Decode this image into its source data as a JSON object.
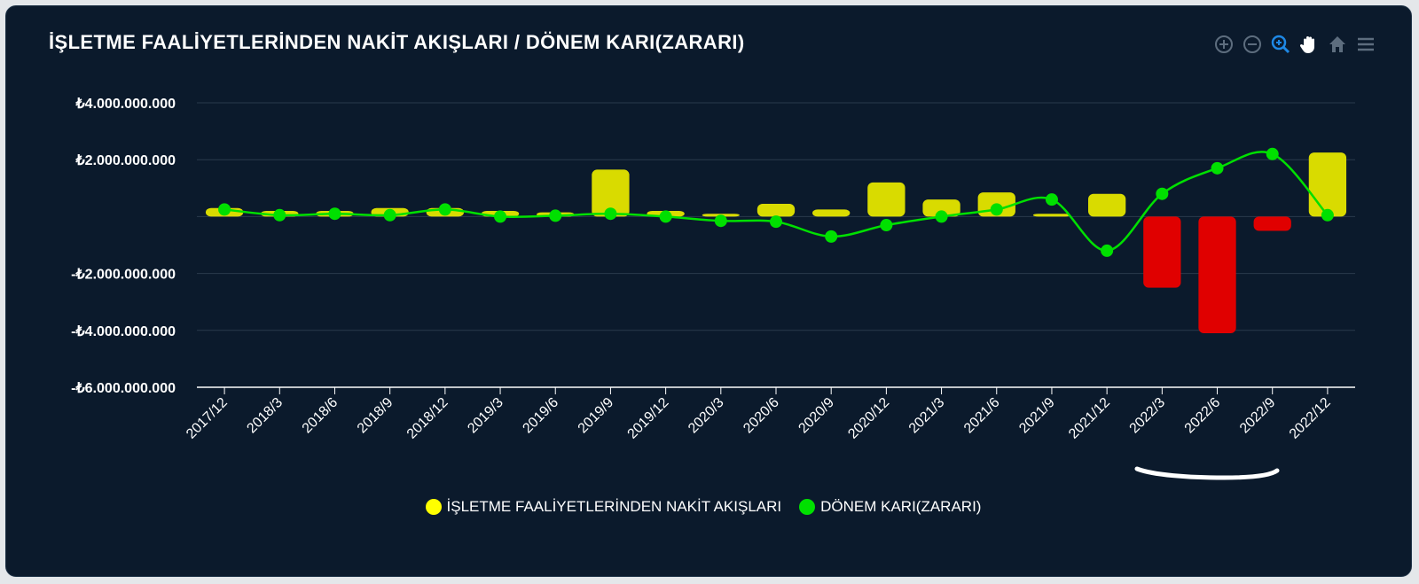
{
  "header": {
    "title": "İŞLETME FAALİYETLERİNDEN NAKİT AKIŞLARI / DÖNEM KARI(ZARARI)"
  },
  "toolbar": {
    "icons": [
      "zoom-in-icon",
      "zoom-out-icon",
      "zoom-select-icon",
      "pan-hand-icon",
      "home-reset-icon",
      "menu-icon"
    ],
    "inactive_color": "#5d6d7e",
    "active_color": "#1e88e5"
  },
  "colors": {
    "bar_positive": "#d9db00",
    "bar_negative": "#e00000",
    "line": "#00e000",
    "grid": "#2a3b4c",
    "axis": "#ffffff"
  },
  "legend": {
    "items": [
      {
        "label": "İŞLETME FAALİYETLERİNDEN NAKİT AKIŞLARI",
        "color": "#ffff00"
      },
      {
        "label": "DÖNEM KARI(ZARARI)",
        "color": "#00e000"
      }
    ]
  },
  "chart_data": {
    "type": "bar",
    "categories": [
      "2017/12",
      "2018/3",
      "2018/6",
      "2018/9",
      "2018/12",
      "2019/3",
      "2019/6",
      "2019/9",
      "2019/12",
      "2020/3",
      "2020/6",
      "2020/9",
      "2020/12",
      "2021/3",
      "2021/6",
      "2021/9",
      "2021/12",
      "2022/3",
      "2022/6",
      "2022/9",
      "2022/12"
    ],
    "series": [
      {
        "name": "İŞLETME FAALİYETLERİNDEN NAKİT AKIŞLARI",
        "type": "bar",
        "values": [
          300000000,
          200000000,
          200000000,
          300000000,
          300000000,
          200000000,
          150000000,
          1650000000,
          200000000,
          100000000,
          450000000,
          250000000,
          1200000000,
          600000000,
          850000000,
          100000000,
          800000000,
          -2500000000,
          -4100000000,
          -500000000,
          2250000000
        ]
      },
      {
        "name": "DÖNEM KARI(ZARARI)",
        "type": "line",
        "values": [
          250000000,
          50000000,
          100000000,
          50000000,
          250000000,
          0,
          30000000,
          100000000,
          0,
          -150000000,
          -180000000,
          -700000000,
          -300000000,
          0,
          250000000,
          600000000,
          -1200000000,
          800000000,
          1700000000,
          2200000000,
          50000000
        ]
      }
    ],
    "ylim": [
      -6000000000,
      4000000000
    ],
    "yticks": [
      4000000000,
      2000000000,
      0,
      -2000000000,
      -4000000000,
      -6000000000
    ],
    "ytick_labels": [
      "₺4.000.000.000",
      "₺2.000.000.000",
      "",
      "-₺2.000.000.000",
      "-₺4.000.000.000",
      "-₺6.000.000.000"
    ],
    "grid": true,
    "legend_position": "bottom-center"
  }
}
